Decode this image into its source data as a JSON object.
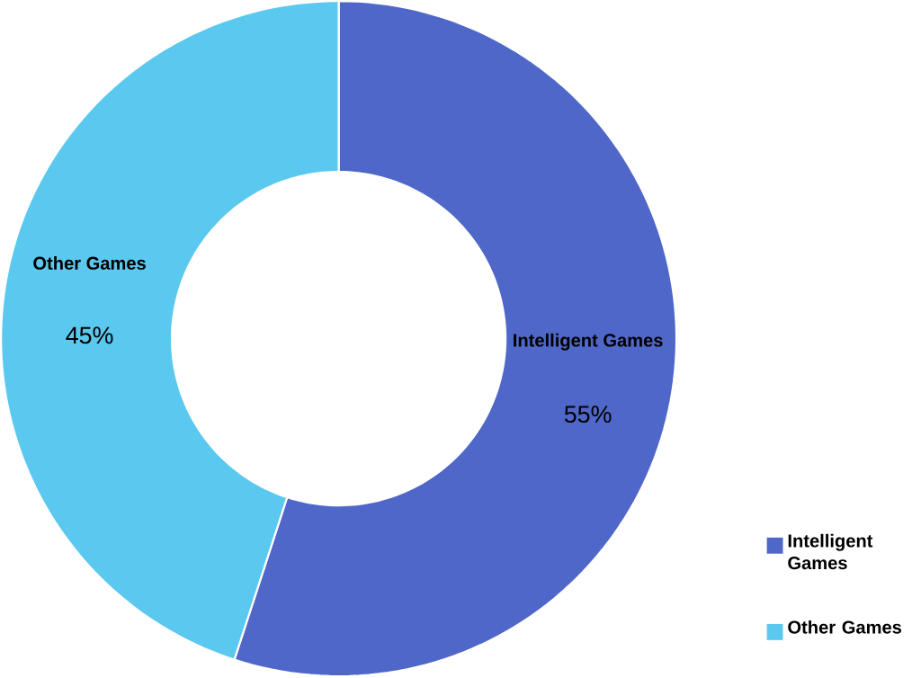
{
  "chart_data": {
    "type": "donut",
    "categories": [
      "Intelligent Games",
      "Other Games"
    ],
    "values": [
      55,
      45
    ],
    "value_labels": [
      "55%",
      "45%"
    ],
    "colors": [
      "#4f67c8",
      "#5bc8ef"
    ],
    "legend": "bottom right"
  }
}
